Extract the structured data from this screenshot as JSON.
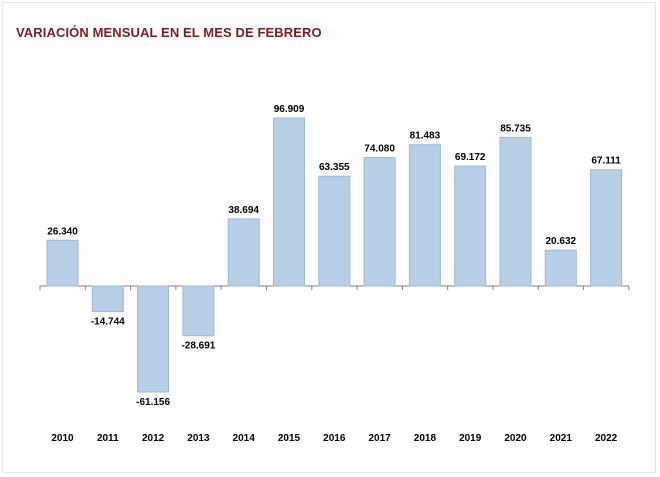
{
  "chart_data": {
    "type": "bar",
    "title": "VARIACIÓN MENSUAL EN EL MES DE FEBRERO",
    "categories": [
      "2010",
      "2011",
      "2012",
      "2013",
      "2014",
      "2015",
      "2016",
      "2017",
      "2018",
      "2019",
      "2020",
      "2021",
      "2022"
    ],
    "values": [
      26340,
      -14744,
      -61156,
      -28691,
      38694,
      96909,
      63355,
      74080,
      81483,
      69172,
      85735,
      20632,
      67111
    ],
    "value_labels": [
      "26.340",
      "-14.744",
      "-61.156",
      "-28.691",
      "38.694",
      "96.909",
      "63.355",
      "74.080",
      "81.483",
      "69.172",
      "85.735",
      "20.632",
      "67.111"
    ],
    "ylim": [
      -65000,
      100000
    ],
    "xlabel": "",
    "ylabel": "",
    "grid": false,
    "legend": "none",
    "bar_color": "#b8cfe8",
    "bar_border_color": "#9db8dc",
    "title_color": "#7a1f1f"
  }
}
